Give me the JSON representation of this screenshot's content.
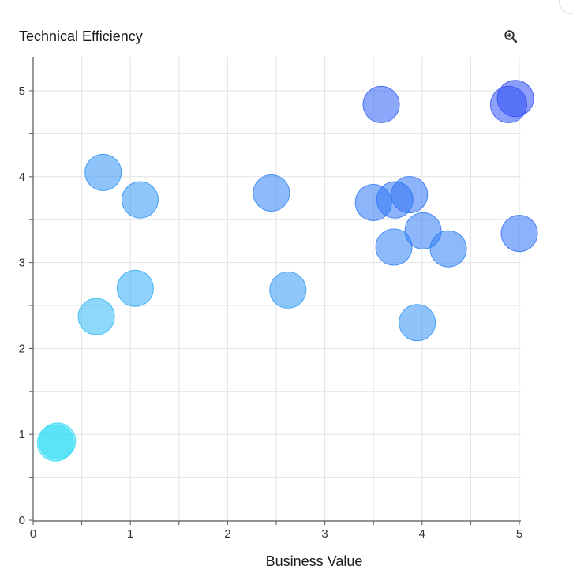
{
  "header": {
    "zoom_icon": "zoom-in-icon"
  },
  "chart_data": {
    "type": "scatter",
    "title": "",
    "xlabel": "Business Value",
    "ylabel": "Technical Efficiency",
    "xlim": [
      0,
      5
    ],
    "ylim": [
      0,
      5.4
    ],
    "x_ticks": [
      "0",
      "1",
      "2",
      "3",
      "4",
      "5"
    ],
    "y_ticks": [
      "0",
      "1",
      "2",
      "3",
      "4",
      "5"
    ],
    "grid": true,
    "color_scale": {
      "low": "#33f2f5",
      "high": "#2f4df5"
    },
    "points": [
      {
        "x": 0.25,
        "y": 0.92
      },
      {
        "x": 0.23,
        "y": 0.9
      },
      {
        "x": 0.65,
        "y": 2.37
      },
      {
        "x": 1.05,
        "y": 2.7
      },
      {
        "x": 0.72,
        "y": 4.05
      },
      {
        "x": 1.1,
        "y": 3.73
      },
      {
        "x": 2.45,
        "y": 3.81
      },
      {
        "x": 2.62,
        "y": 2.68
      },
      {
        "x": 3.58,
        "y": 4.84
      },
      {
        "x": 3.5,
        "y": 3.7
      },
      {
        "x": 3.72,
        "y": 3.73
      },
      {
        "x": 3.87,
        "y": 3.79
      },
      {
        "x": 3.71,
        "y": 3.18
      },
      {
        "x": 4.01,
        "y": 3.37
      },
      {
        "x": 4.27,
        "y": 3.16
      },
      {
        "x": 3.95,
        "y": 2.3
      },
      {
        "x": 4.89,
        "y": 4.84
      },
      {
        "x": 4.96,
        "y": 4.91
      },
      {
        "x": 5.0,
        "y": 3.34
      }
    ]
  }
}
